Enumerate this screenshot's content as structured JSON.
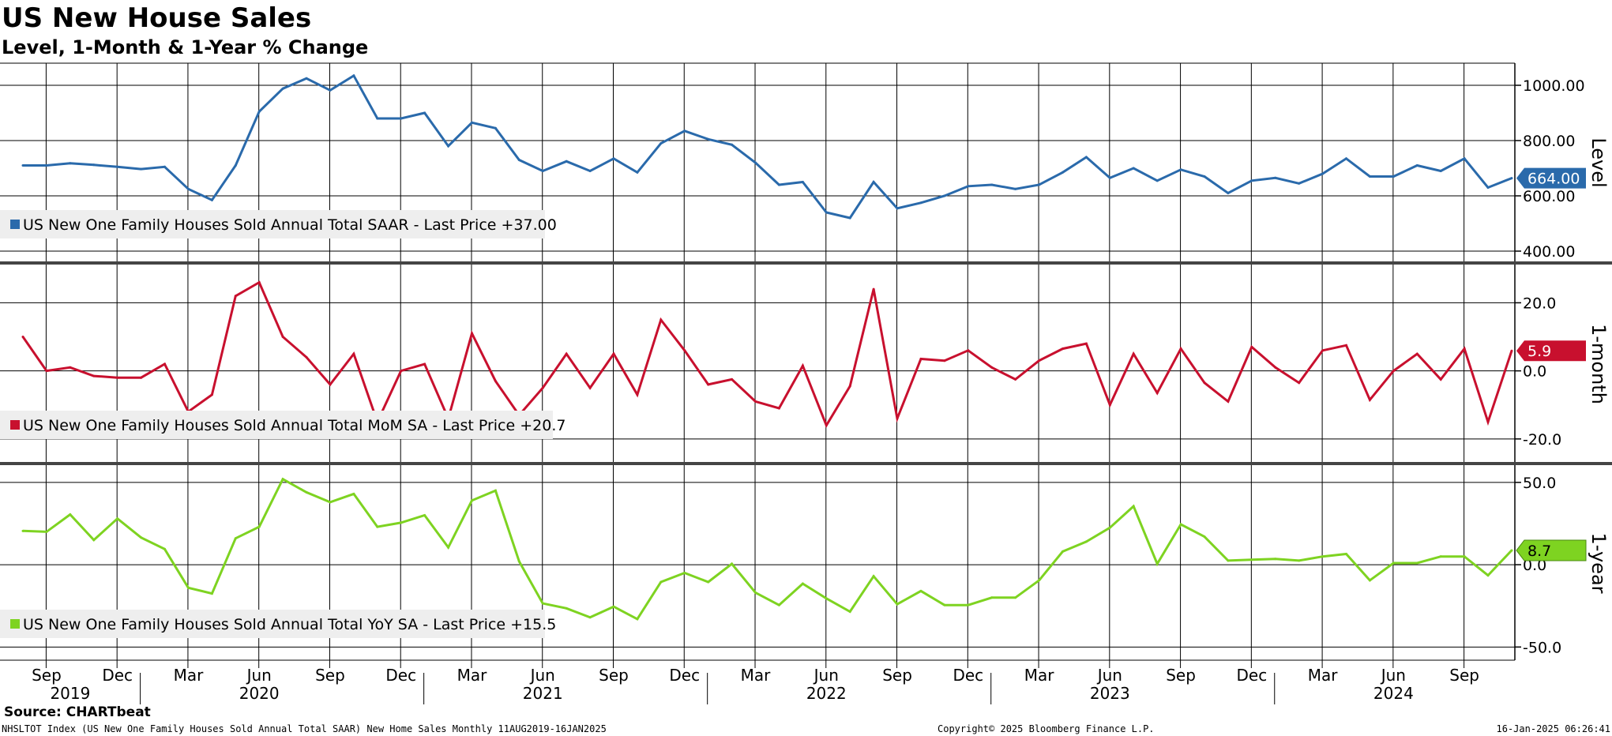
{
  "header": {
    "title": "US New House Sales",
    "subtitle": "Level, 1-Month & 1-Year % Change"
  },
  "footer": {
    "source": "Source: CHARTbeat",
    "description": "NHSLTOT Index (US New One Family Houses Sold Annual Total SAAR) New Home Sales  Monthly 11AUG2019-16JAN2025",
    "copyright": "Copyright© 2025 Bloomberg Finance L.P.",
    "timestamp": "16-Jan-2025 06:26:41"
  },
  "colors": {
    "level": "#2a6aab",
    "month": "#c8102e",
    "year": "#7ed321",
    "grid": "#000000",
    "legend_bg": "#eeeeee"
  },
  "chart_data": {
    "type": "line",
    "x_axis": {
      "month_ticks": [
        "Sep",
        "Dec",
        "Mar",
        "Jun",
        "Sep",
        "Dec",
        "Mar",
        "Jun",
        "Sep",
        "Dec",
        "Mar",
        "Jun",
        "Sep",
        "Dec",
        "Mar",
        "Jun",
        "Sep",
        "Dec",
        "Mar",
        "Jun",
        "Sep"
      ],
      "year_labels": [
        "2019",
        "2020",
        "2021",
        "2022",
        "2023",
        "2024"
      ],
      "start": "2019-08",
      "end": "2024-12"
    },
    "panels": [
      {
        "key": "level",
        "axis_title": "Level",
        "ylim": [
          360,
          1080
        ],
        "ticks": [
          1000,
          800,
          600,
          400
        ],
        "tick_labels": [
          "1000.00",
          "800.00",
          "600.00",
          "400.00"
        ],
        "last_label": "664.00",
        "last_value": 664,
        "series": {
          "name": "US New One Family Houses Sold Annual Total SAAR - Last Price +37.00",
          "values": [
            710,
            710,
            718,
            712,
            705,
            697,
            705,
            625,
            585,
            710,
            905,
            988,
            1025,
            982,
            1035,
            880,
            880,
            900,
            780,
            865,
            845,
            730,
            690,
            725,
            690,
            735,
            685,
            790,
            835,
            805,
            785,
            720,
            640,
            650,
            540,
            520,
            650,
            555,
            575,
            600,
            635,
            640,
            625,
            640,
            685,
            740,
            665,
            700,
            655,
            695,
            670,
            610,
            655,
            665,
            645,
            680,
            735,
            670,
            670,
            710,
            690,
            735,
            630,
            664
          ]
        }
      },
      {
        "key": "month",
        "axis_title": "1-month",
        "ylim": [
          -27,
          31
        ],
        "ticks": [
          20,
          0,
          -20
        ],
        "tick_labels": [
          "20.0",
          "0.0",
          "-20.0"
        ],
        "last_label": "5.9",
        "last_value": 5.9,
        "series": {
          "name": "US New One Family Houses Sold Annual Total MoM SA - Last Price +20.7",
          "values": [
            10,
            0,
            1,
            -1.5,
            -2,
            -2,
            2,
            -12,
            -7,
            22,
            26,
            10,
            4,
            -4,
            5,
            -15,
            0,
            2,
            -14,
            11,
            -3,
            -13,
            -5,
            5,
            -5,
            5,
            -7,
            15,
            6,
            -4,
            -2.5,
            -9,
            -11,
            1.5,
            -16,
            -4.5,
            24,
            -14,
            3.5,
            3,
            6,
            1,
            -2.5,
            3,
            6.5,
            8,
            -10,
            5,
            -6.5,
            6.5,
            -3.5,
            -9,
            7,
            1,
            -3.5,
            6,
            7.5,
            -8.5,
            0,
            5,
            -2.5,
            6.5,
            -15,
            5.9
          ]
        }
      },
      {
        "key": "year",
        "axis_title": "1-year",
        "ylim": [
          -58,
          60
        ],
        "ticks": [
          50,
          0,
          -50
        ],
        "tick_labels": [
          "50.0",
          "0.0",
          "-50.0"
        ],
        "last_label": "8.7",
        "last_value": 8.7,
        "series": {
          "name": "US New One Family Houses Sold Annual Total YoY SA - Last Price +15.5",
          "values": [
            20.5,
            20,
            30.5,
            15,
            28,
            16.5,
            9.5,
            -14,
            -17.5,
            16,
            23,
            52,
            44,
            38,
            43,
            23,
            25.5,
            30,
            10.5,
            39,
            45,
            2,
            -23.5,
            -26.5,
            -32,
            -25.5,
            -33,
            -10.5,
            -5,
            -10.5,
            0.5,
            -17,
            -24.5,
            -11.5,
            -20.5,
            -28.5,
            -7,
            -24,
            -16,
            -24.5,
            -24.5,
            -20,
            -20,
            -9.5,
            8,
            14,
            22.5,
            35.5,
            0.5,
            24.5,
            17,
            2.5,
            3,
            3.5,
            2.5,
            5,
            6.5,
            -9.5,
            1,
            1,
            5,
            5,
            -6.5,
            8.7
          ]
        }
      }
    ]
  }
}
